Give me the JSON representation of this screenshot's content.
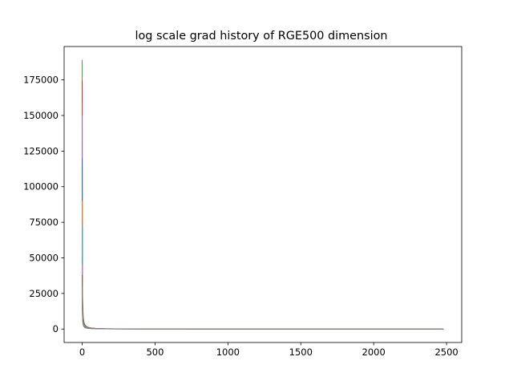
{
  "chart_data": {
    "type": "line",
    "title": "log scale grad history of RGE500 dimension",
    "xlabel": "",
    "ylabel": "",
    "xlim": [
      -124,
      2604
    ],
    "ylim": [
      -9450,
      198450
    ],
    "grid": false,
    "legend": "none",
    "x_ticks": [
      {
        "value": 0,
        "label": "0"
      },
      {
        "value": 500,
        "label": "500"
      },
      {
        "value": 1000,
        "label": "1000"
      },
      {
        "value": 1500,
        "label": "1500"
      },
      {
        "value": 2000,
        "label": "2000"
      },
      {
        "value": 2500,
        "label": "2500"
      }
    ],
    "y_ticks": [
      {
        "value": 0,
        "label": "0"
      },
      {
        "value": 25000,
        "label": "25000"
      },
      {
        "value": 50000,
        "label": "50000"
      },
      {
        "value": 75000,
        "label": "75000"
      },
      {
        "value": 100000,
        "label": "100000"
      },
      {
        "value": 125000,
        "label": "125000"
      },
      {
        "value": 150000,
        "label": "150000"
      },
      {
        "value": 175000,
        "label": "175000"
      }
    ],
    "series": [
      {
        "color": "#2ca02c",
        "peak": 189000,
        "x": [
          0,
          1,
          2,
          4,
          7,
          12,
          20,
          35,
          60,
          100,
          160,
          250,
          400,
          700,
          1200,
          2480
        ],
        "y": [
          189000,
          60000,
          30000,
          18000,
          9000,
          5000,
          2600,
          1400,
          800,
          450,
          250,
          140,
          80,
          40,
          20,
          10
        ]
      },
      {
        "color": "#d62728",
        "peak": 175000,
        "x": [
          0,
          1,
          2,
          4,
          7,
          12,
          20,
          35,
          60,
          100,
          160,
          250,
          400,
          700,
          1200,
          2480
        ],
        "y": [
          175000,
          52000,
          26000,
          15000,
          8000,
          4200,
          2300,
          1200,
          700,
          400,
          220,
          120,
          70,
          35,
          18,
          9
        ]
      },
      {
        "color": "#9467bd",
        "peak": 150000,
        "x": [
          0,
          1,
          2,
          4,
          7,
          12,
          20,
          35,
          60,
          100,
          160,
          250,
          400,
          700,
          1200,
          2480
        ],
        "y": [
          150000,
          45000,
          22000,
          12000,
          7000,
          3800,
          2000,
          1100,
          600,
          350,
          200,
          110,
          60,
          30,
          15,
          8
        ]
      },
      {
        "color": "#1f77b4",
        "peak": 120000,
        "x": [
          0,
          1,
          2,
          4,
          7,
          12,
          20,
          35,
          60,
          100,
          160,
          250,
          400,
          700,
          1200,
          2480
        ],
        "y": [
          120000,
          38000,
          19000,
          10000,
          6000,
          3200,
          1700,
          900,
          500,
          300,
          170,
          95,
          55,
          28,
          14,
          7
        ]
      },
      {
        "color": "#ff7f0e",
        "peak": 90000,
        "x": [
          0,
          1,
          2,
          4,
          7,
          12,
          20,
          35,
          60,
          100,
          160,
          250,
          400,
          700,
          1200,
          2480
        ],
        "y": [
          90000,
          30000,
          16000,
          9000,
          5000,
          2800,
          1500,
          800,
          450,
          260,
          150,
          85,
          48,
          24,
          12,
          6
        ]
      },
      {
        "color": "#17becf",
        "peak": 72000,
        "x": [
          0,
          1,
          2,
          4,
          7,
          12,
          20,
          35,
          60,
          100,
          160,
          250,
          400,
          700,
          1200,
          2480
        ],
        "y": [
          72000,
          42000,
          20000,
          9500,
          4500,
          2400,
          1300,
          700,
          400,
          230,
          130,
          75,
          42,
          22,
          11,
          5
        ]
      },
      {
        "color": "#bcbd22",
        "peak": 33000,
        "x": [
          0,
          1,
          2,
          4,
          7,
          12,
          20,
          35,
          60,
          100,
          160,
          250,
          400,
          700,
          1200,
          2480
        ],
        "y": [
          33000,
          28000,
          14000,
          8000,
          4200,
          2200,
          1200,
          650,
          380,
          220,
          125,
          70,
          40,
          20,
          10,
          5
        ]
      },
      {
        "color": "#e377c2",
        "peak": 45000,
        "x": [
          0,
          1,
          2,
          4,
          7,
          12,
          20,
          35,
          60,
          100,
          160,
          250,
          400,
          700,
          1200,
          2480
        ],
        "y": [
          45000,
          20000,
          11000,
          6500,
          3600,
          2000,
          1100,
          600,
          350,
          200,
          115,
          65,
          37,
          19,
          9,
          4
        ]
      },
      {
        "color": "#8c564b",
        "peak": 38000,
        "x": [
          0,
          1,
          2,
          4,
          7,
          12,
          20,
          35,
          60,
          100,
          160,
          250,
          400,
          700,
          1200,
          2480
        ],
        "y": [
          38000,
          16000,
          9000,
          5500,
          3200,
          1800,
          1000,
          560,
          330,
          190,
          110,
          62,
          35,
          18,
          9,
          4
        ]
      },
      {
        "color": "#7f7f7f",
        "peak": 30000,
        "x": [
          0,
          1,
          2,
          4,
          7,
          12,
          20,
          35,
          60,
          100,
          160,
          250,
          400,
          700,
          1200,
          2480
        ],
        "y": [
          30000,
          14000,
          8000,
          4800,
          2900,
          1600,
          900,
          500,
          300,
          175,
          100,
          58,
          33,
          17,
          8,
          4
        ]
      }
    ]
  }
}
